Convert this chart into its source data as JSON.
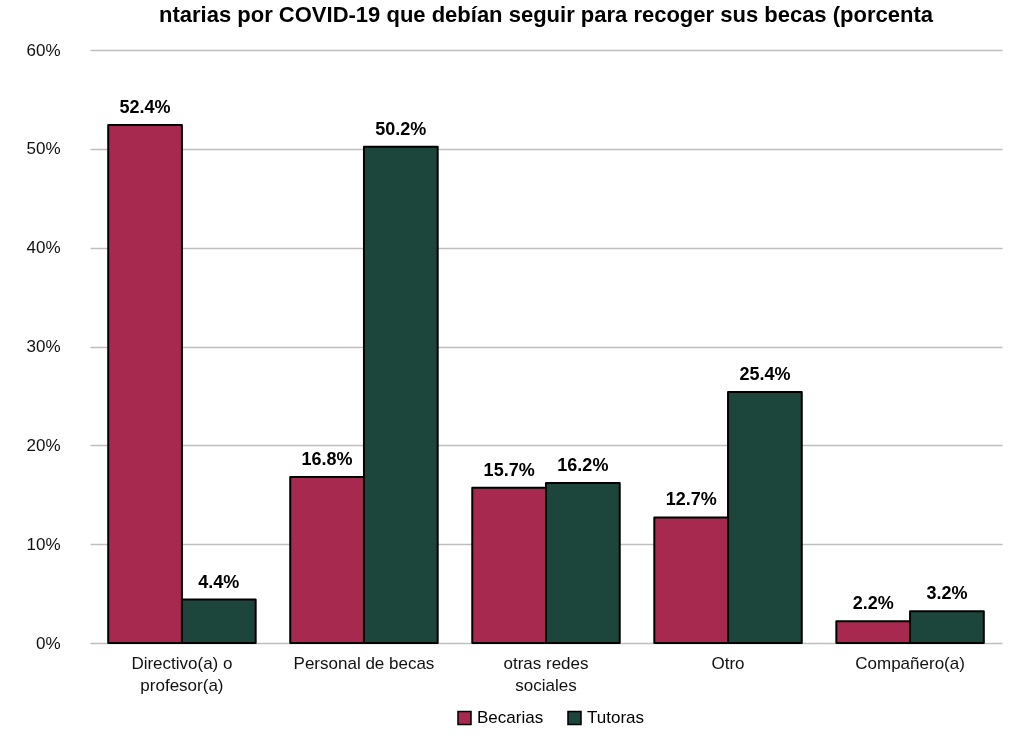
{
  "chart_data": {
    "type": "bar",
    "title": "ntarias por COVID-19 que debían seguir para recoger sus becas (porcenta",
    "categories": [
      "Directivo(a) o profesor(a)",
      "Personal de becas",
      "otras redes sociales",
      "Otro",
      "Compañero(a)"
    ],
    "series": [
      {
        "name": "Becarias",
        "color": "#a8294f",
        "values": [
          52.4,
          16.8,
          15.7,
          12.7,
          2.2
        ],
        "value_labels": [
          "52.4%",
          "16.8%",
          "15.7%",
          "12.7%",
          "2.2%"
        ]
      },
      {
        "name": "Tutoras",
        "color": "#1c453c",
        "values": [
          4.4,
          50.2,
          16.2,
          25.4,
          3.2
        ],
        "value_labels": [
          "4.4%",
          "50.2%",
          "16.2%",
          "25.4%",
          "3.2%"
        ]
      }
    ],
    "ylim": [
      0,
      60
    ],
    "yticks": [
      {
        "value": 0,
        "label": "0%"
      },
      {
        "value": 10,
        "label": "10%"
      },
      {
        "value": 20,
        "label": "20%"
      },
      {
        "value": 30,
        "label": "30%"
      },
      {
        "value": 40,
        "label": "40%"
      },
      {
        "value": 50,
        "label": "50%"
      },
      {
        "value": 60,
        "label": "60%"
      }
    ],
    "grid": "y",
    "legend": "bottom"
  }
}
